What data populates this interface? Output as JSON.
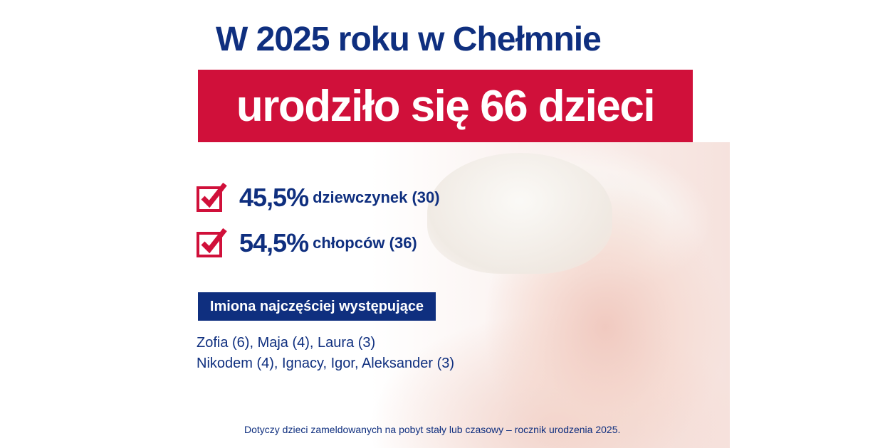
{
  "headline": {
    "line1": "W 2025 roku w Chełmnie",
    "line2": "urodziło się 66 dzieci"
  },
  "stats": [
    {
      "percent": "45,5%",
      "label": "dziewczynek (30)",
      "icon": "checkbox-checked-icon"
    },
    {
      "percent": "54,5%",
      "label": "chłopców (36)",
      "icon": "checkbox-checked-icon"
    }
  ],
  "names": {
    "heading": "Imiona najczęściej występujące",
    "girls": "Zofia (6), Maja (4), Laura (3)",
    "boys": "Nikodem (4), Ignacy, Igor, Aleksander (3)"
  },
  "footnote": "Dotyczy dzieci zameldowanych na pobyt stały lub czasowy – rocznik urodzenia 2025.",
  "colors": {
    "navy": "#0f2f7f",
    "red": "#d0103a"
  }
}
